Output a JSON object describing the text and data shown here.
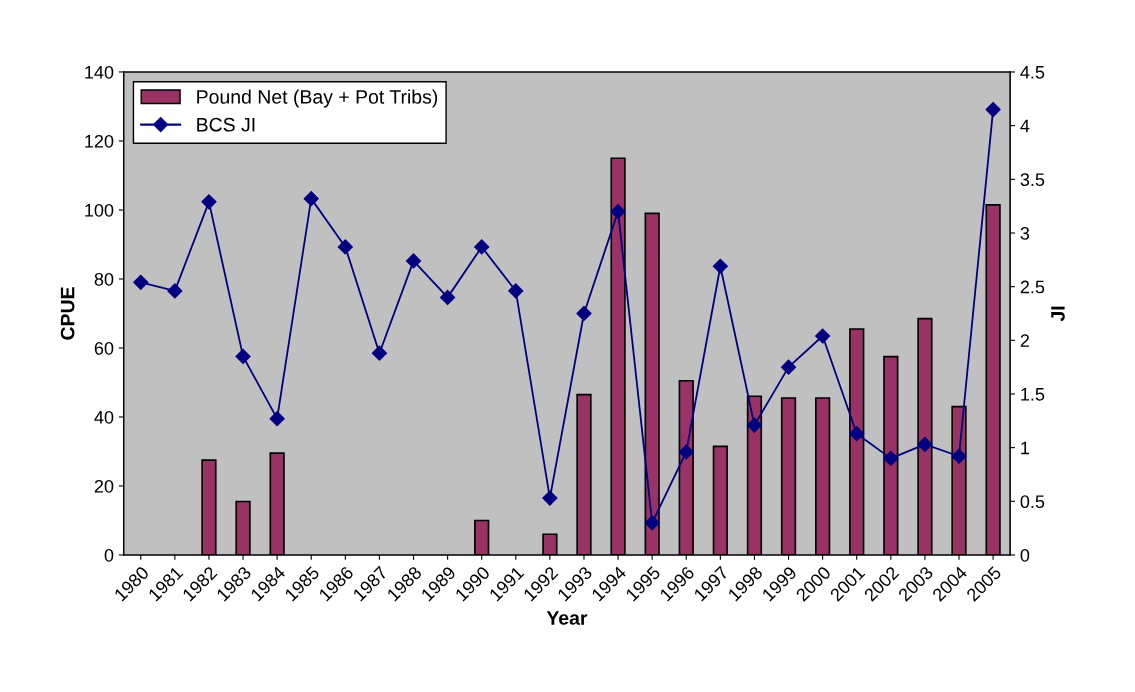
{
  "chart_data": {
    "type": "bar",
    "xlabel": "Year",
    "ylabel": "CPUE",
    "y2label": "JI",
    "categories": [
      "1980",
      "1981",
      "1982",
      "1983",
      "1984",
      "1985",
      "1986",
      "1987",
      "1988",
      "1989",
      "1990",
      "1991",
      "1992",
      "1993",
      "1994",
      "1995",
      "1996",
      "1997",
      "1998",
      "1999",
      "2000",
      "2001",
      "2002",
      "2003",
      "2004",
      "2005"
    ],
    "series": [
      {
        "name": "Pound Net (Bay + Pot Tribs)",
        "color": "#993366",
        "values": [
          null,
          null,
          27.5,
          15.5,
          29.5,
          null,
          null,
          null,
          null,
          null,
          10,
          null,
          6,
          46.5,
          115,
          99,
          50.5,
          31.5,
          46,
          45.5,
          45.5,
          65.5,
          57.5,
          68.5,
          43,
          101.5
        ]
      },
      {
        "name": "BCS JI",
        "type": "line",
        "axis": "y2",
        "color": "#000080",
        "marker": "diamond",
        "values": [
          2.54,
          2.46,
          3.29,
          1.85,
          1.27,
          3.32,
          2.87,
          1.88,
          2.74,
          2.4,
          2.87,
          2.46,
          0.53,
          2.25,
          3.2,
          0.3,
          0.96,
          2.69,
          1.21,
          1.75,
          2.04,
          1.13,
          0.9,
          1.03,
          0.92,
          4.15
        ]
      }
    ],
    "ylim": [
      0,
      140
    ],
    "yticks": [
      0,
      20,
      40,
      60,
      80,
      100,
      120,
      140
    ],
    "y2lim": [
      0,
      4.5
    ],
    "y2ticks": [
      0,
      0.5,
      1,
      1.5,
      2,
      2.5,
      3,
      3.5,
      4,
      4.5
    ],
    "grid": false,
    "legend": "top left"
  }
}
